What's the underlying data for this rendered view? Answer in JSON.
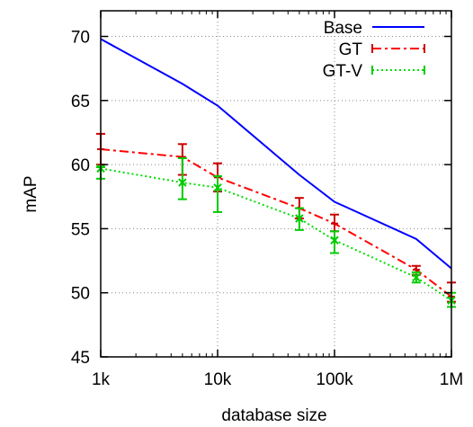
{
  "chart_data": {
    "type": "line",
    "title": "",
    "xlabel": "database size",
    "ylabel": "mAP",
    "xscale": "log",
    "x": [
      1000,
      5000,
      10000,
      50000,
      100000,
      500000,
      1000000
    ],
    "xlim": [
      1000,
      1000000
    ],
    "ylim": [
      45,
      72
    ],
    "xticks": [
      {
        "value": 1000,
        "label": "1k"
      },
      {
        "value": 10000,
        "label": "10k"
      },
      {
        "value": 100000,
        "label": "100k"
      },
      {
        "value": 1000000,
        "label": "1M"
      }
    ],
    "yticks": [
      {
        "value": 45,
        "label": "45"
      },
      {
        "value": 50,
        "label": "50"
      },
      {
        "value": 55,
        "label": "55"
      },
      {
        "value": 60,
        "label": "60"
      },
      {
        "value": 65,
        "label": "65"
      },
      {
        "value": 70,
        "label": "70"
      }
    ],
    "grid": true,
    "legend_position": "top-right",
    "series": [
      {
        "name": "Base",
        "color": "#0000ff",
        "style": "solid",
        "values": [
          69.8,
          66.3,
          64.6,
          59.2,
          57.1,
          54.2,
          51.9
        ]
      },
      {
        "name": "GT",
        "color": "#ff0000",
        "style": "dash-dot",
        "errorbar_color": "#cc0000",
        "values": [
          61.2,
          60.6,
          59.0,
          56.6,
          55.4,
          51.8,
          49.7
        ],
        "err_low": [
          60.0,
          59.2,
          57.9,
          55.8,
          54.8,
          51.4,
          49.3
        ],
        "err_high": [
          62.4,
          61.6,
          60.1,
          57.4,
          56.1,
          52.1,
          50.8
        ]
      },
      {
        "name": "GT-V",
        "color": "#00dd00",
        "style": "dotted",
        "errorbar_color": "#00cc00",
        "values": [
          59.7,
          58.6,
          58.2,
          55.8,
          54.1,
          51.2,
          49.4
        ],
        "err_low": [
          58.9,
          57.3,
          56.3,
          54.9,
          53.1,
          50.8,
          48.9
        ],
        "err_high": [
          59.8,
          60.5,
          59.1,
          56.6,
          54.8,
          51.6,
          50.0
        ]
      }
    ]
  }
}
